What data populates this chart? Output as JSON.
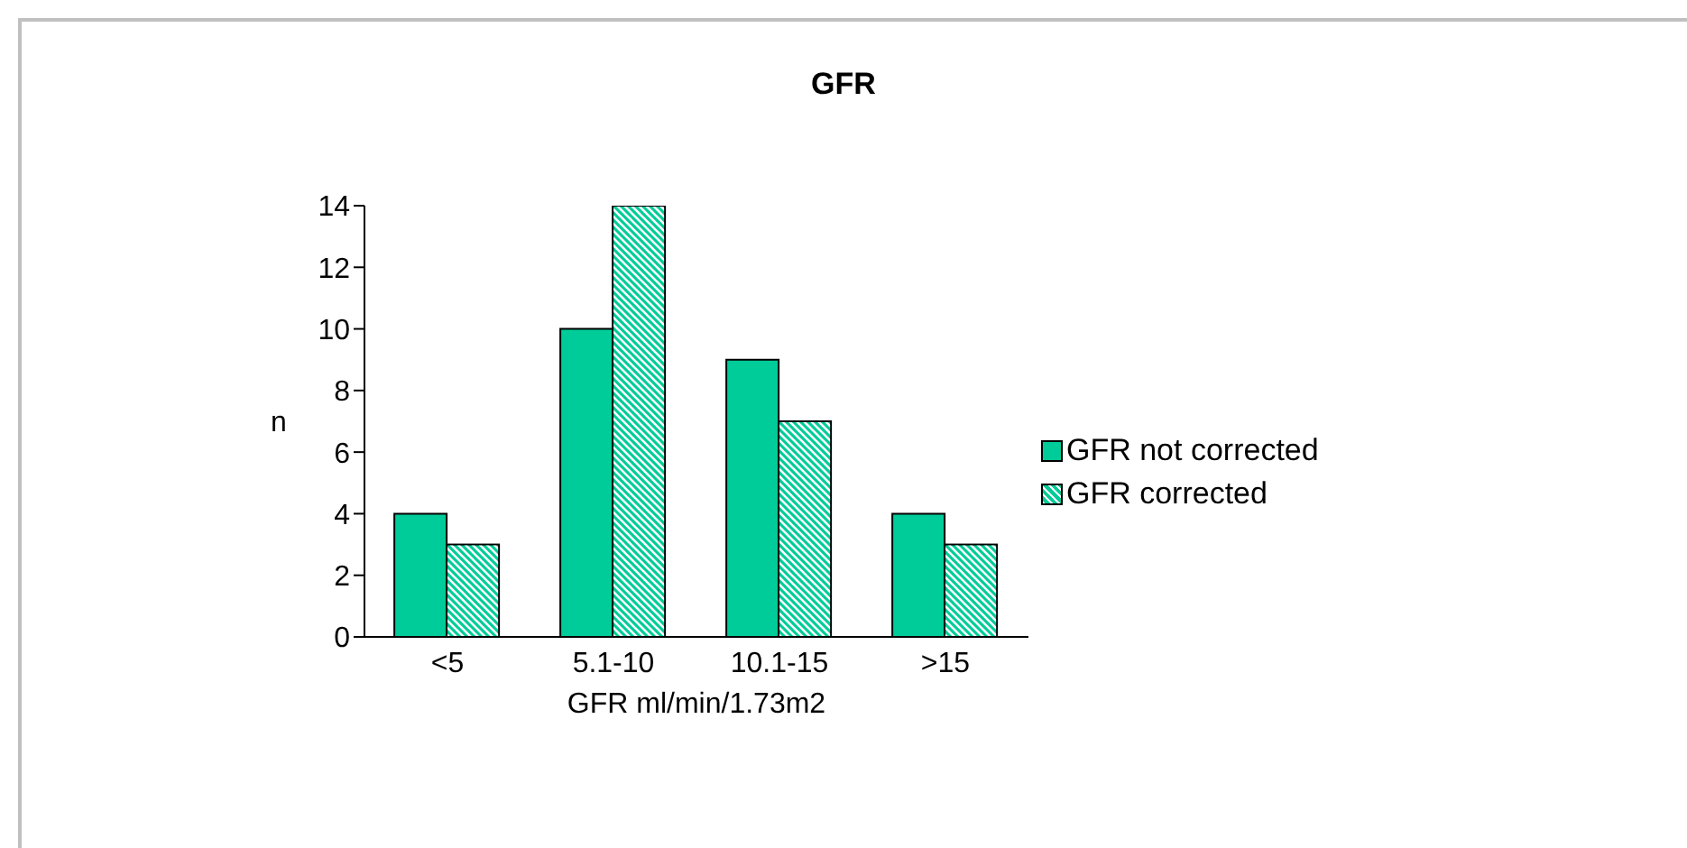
{
  "chart_data": {
    "type": "bar",
    "title": "GFR",
    "xlabel": "GFR ml/min/1.73m2",
    "ylabel": "n",
    "categories": [
      "<5",
      "5.1-10",
      "10.1-15",
      ">15"
    ],
    "series": [
      {
        "name": "GFR not corrected",
        "color": "#00cc99",
        "values": [
          4,
          10,
          9,
          4
        ]
      },
      {
        "name": "GFR corrected",
        "color": "#00cc99",
        "values": [
          3,
          14,
          7,
          3
        ]
      }
    ],
    "ylim": [
      0,
      14
    ],
    "yticks": [
      0,
      2,
      4,
      6,
      8,
      10,
      12,
      14
    ],
    "grid": false,
    "legend": "right"
  }
}
